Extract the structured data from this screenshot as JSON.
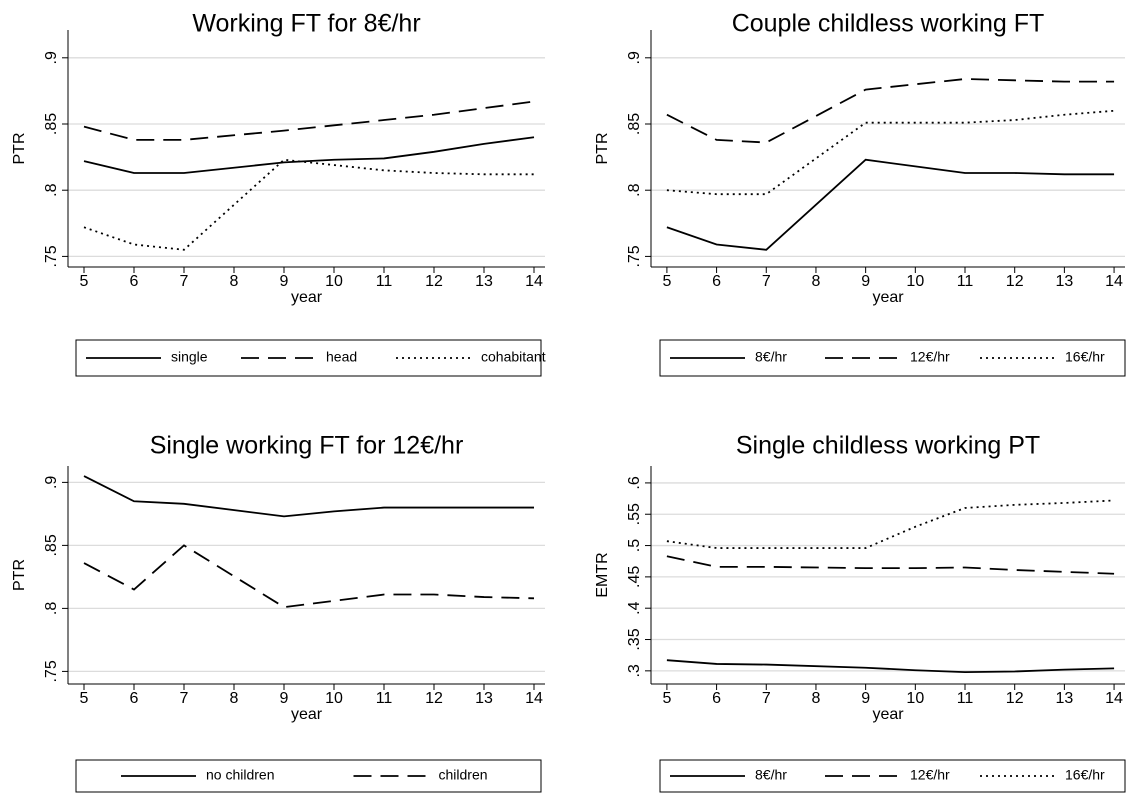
{
  "chart_data": [
    {
      "type": "line",
      "title": "Working FT for 8€/hr",
      "ylabel": "PTR",
      "xlabel": "year",
      "x": [
        5,
        6,
        7,
        9,
        10,
        11,
        12,
        13,
        14
      ],
      "series": [
        {
          "name": "single",
          "color": "#000000",
          "dash": "solid",
          "values": [
            0.822,
            0.813,
            0.813,
            0.821,
            0.823,
            0.824,
            0.829,
            0.835,
            0.84
          ]
        },
        {
          "name": "head",
          "color": "#000000",
          "dash": "dashed",
          "values": [
            0.848,
            0.838,
            0.838,
            0.845,
            0.849,
            0.853,
            0.857,
            0.862,
            0.867
          ]
        },
        {
          "name": "cohabitant",
          "color": "#000000",
          "dash": "dotted",
          "values": [
            0.772,
            0.759,
            0.755,
            0.823,
            0.819,
            0.815,
            0.813,
            0.812,
            0.812
          ]
        }
      ],
      "xlim": [
        4.68,
        14.22
      ],
      "xticks": [
        5,
        6,
        7,
        8,
        9,
        10,
        11,
        12,
        13,
        14
      ],
      "ylim": [
        0.742,
        0.921
      ],
      "yticks": [
        {
          "value": 0.75,
          "label": ".75"
        },
        {
          "value": 0.8,
          "label": ".8"
        },
        {
          "value": 0.85,
          "label": ".85"
        },
        {
          "value": 0.9,
          "label": ".9"
        }
      ],
      "grid": true
    },
    {
      "type": "line",
      "title": "Couple childless working FT",
      "ylabel": "PTR",
      "xlabel": "year",
      "x": [
        5,
        6,
        7,
        9,
        10,
        11,
        12,
        13,
        14
      ],
      "series": [
        {
          "name": "8€/hr",
          "color": "#000000",
          "dash": "solid",
          "values": [
            0.772,
            0.759,
            0.755,
            0.823,
            0.818,
            0.813,
            0.813,
            0.812,
            0.812
          ]
        },
        {
          "name": "12€/hr",
          "color": "#000000",
          "dash": "dashed",
          "values": [
            0.857,
            0.838,
            0.836,
            0.876,
            0.88,
            0.884,
            0.883,
            0.882,
            0.882
          ]
        },
        {
          "name": "16€/hr",
          "color": "#000000",
          "dash": "dotted",
          "values": [
            0.8,
            0.797,
            0.797,
            0.851,
            0.851,
            0.851,
            0.853,
            0.857,
            0.86
          ]
        }
      ],
      "xlim": [
        4.68,
        14.22
      ],
      "xticks": [
        5,
        6,
        7,
        8,
        9,
        10,
        11,
        12,
        13,
        14
      ],
      "ylim": [
        0.742,
        0.921
      ],
      "yticks": [
        {
          "value": 0.75,
          "label": ".75"
        },
        {
          "value": 0.8,
          "label": ".8"
        },
        {
          "value": 0.85,
          "label": ".85"
        },
        {
          "value": 0.9,
          "label": ".9"
        }
      ],
      "grid": true
    },
    {
      "type": "line",
      "title": "Single working FT for 12€/hr",
      "ylabel": "PTR",
      "xlabel": "year",
      "x": [
        5,
        6,
        7,
        9,
        10,
        11,
        12,
        13,
        14
      ],
      "series": [
        {
          "name": "no children",
          "color": "#000000",
          "dash": "solid",
          "values": [
            0.905,
            0.885,
            0.883,
            0.873,
            0.877,
            0.88,
            0.88,
            0.88,
            0.88
          ]
        },
        {
          "name": "children",
          "color": "#000000",
          "dash": "dashed",
          "values": [
            0.836,
            0.815,
            0.85,
            0.801,
            0.806,
            0.811,
            0.811,
            0.809,
            0.808
          ]
        }
      ],
      "xlim": [
        4.68,
        14.22
      ],
      "xticks": [
        5,
        6,
        7,
        8,
        9,
        10,
        11,
        12,
        13,
        14
      ],
      "ylim": [
        0.74,
        0.913
      ],
      "yticks": [
        {
          "value": 0.75,
          "label": ".75"
        },
        {
          "value": 0.8,
          "label": ".8"
        },
        {
          "value": 0.85,
          "label": ".85"
        },
        {
          "value": 0.9,
          "label": ".9"
        }
      ],
      "grid": true
    },
    {
      "type": "line",
      "title": "Single childless working PT",
      "ylabel": "EMTR",
      "xlabel": "year",
      "x": [
        5,
        6,
        7,
        9,
        10,
        11,
        12,
        13,
        14
      ],
      "series": [
        {
          "name": "8€/hr",
          "color": "#000000",
          "dash": "solid",
          "values": [
            0.317,
            0.311,
            0.31,
            0.305,
            0.301,
            0.298,
            0.299,
            0.302,
            0.304
          ]
        },
        {
          "name": "12€/hr",
          "color": "#000000",
          "dash": "dashed",
          "values": [
            0.483,
            0.466,
            0.466,
            0.464,
            0.464,
            0.465,
            0.461,
            0.458,
            0.455
          ]
        },
        {
          "name": "16€/hr",
          "color": "#000000",
          "dash": "dotted",
          "values": [
            0.507,
            0.496,
            0.496,
            0.496,
            0.53,
            0.56,
            0.565,
            0.568,
            0.572
          ]
        }
      ],
      "xlim": [
        4.68,
        14.22
      ],
      "xticks": [
        5,
        6,
        7,
        8,
        9,
        10,
        11,
        12,
        13,
        14
      ],
      "ylim": [
        0.279,
        0.627
      ],
      "yticks": [
        {
          "value": 0.3,
          "label": ".3"
        },
        {
          "value": 0.35,
          "label": ".35"
        },
        {
          "value": 0.4,
          "label": ".4"
        },
        {
          "value": 0.45,
          "label": ".45"
        },
        {
          "value": 0.5,
          "label": ".5"
        },
        {
          "value": 0.55,
          "label": ".55"
        },
        {
          "value": 0.6,
          "label": ".6"
        }
      ],
      "grid": true
    }
  ]
}
